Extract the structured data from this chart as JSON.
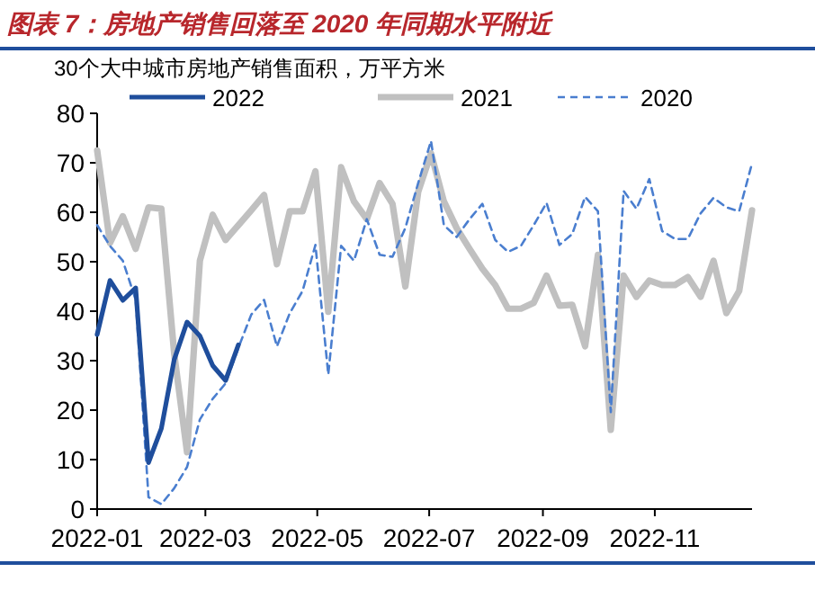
{
  "chart_data": {
    "type": "line",
    "title": "图表 7：房地产销售回落至 2020 年同期水平附近",
    "ylabel": "30个大中城市房地产销售面积，万平方米",
    "x": [
      "2022-01-01",
      "2022-01-08",
      "2022-01-15",
      "2022-01-22",
      "2022-01-29",
      "2022-02-05",
      "2022-02-12",
      "2022-02-19",
      "2022-02-26",
      "2022-03-05",
      "2022-03-12",
      "2022-03-19",
      "2022-03-26",
      "2022-04-02",
      "2022-04-09",
      "2022-04-16",
      "2022-04-23",
      "2022-04-30",
      "2022-05-07",
      "2022-05-14",
      "2022-05-21",
      "2022-05-28",
      "2022-06-04",
      "2022-06-11",
      "2022-06-18",
      "2022-06-25",
      "2022-07-02",
      "2022-07-09",
      "2022-07-16",
      "2022-07-23",
      "2022-07-30",
      "2022-08-06",
      "2022-08-13",
      "2022-08-20",
      "2022-08-27",
      "2022-09-03",
      "2022-09-10",
      "2022-09-17",
      "2022-09-24",
      "2022-10-01",
      "2022-10-08",
      "2022-10-15",
      "2022-10-22",
      "2022-10-29",
      "2022-11-05",
      "2022-11-12",
      "2022-11-19",
      "2022-11-26",
      "2022-12-03",
      "2022-12-10",
      "2022-12-17",
      "2022-12-24"
    ],
    "series": [
      {
        "name": "2022",
        "color": "#1f4e9c",
        "line_style": "solid",
        "x": [
          "2022-01-01",
          "2022-01-08",
          "2022-01-15",
          "2022-01-22",
          "2022-01-29",
          "2022-02-05",
          "2022-02-12",
          "2022-02-19",
          "2022-02-26",
          "2022-03-05",
          "2022-03-12",
          "2022-03-19"
        ],
        "values": [
          35.3,
          46.2,
          42.2,
          44.7,
          9.4,
          16.3,
          30.2,
          37.8,
          35,
          29,
          26,
          33.2
        ]
      },
      {
        "name": "2021",
        "color": "#c0c0c0",
        "line_style": "solid",
        "values": [
          72.5,
          53.8,
          59.2,
          52.6,
          61,
          60.7,
          31.4,
          11.5,
          50.2,
          59.5,
          54.4,
          57.4,
          60.4,
          63.5,
          49.5,
          60.2,
          60.2,
          68.3,
          39.9,
          69.1,
          62.2,
          58.6,
          65.9,
          61.7,
          45,
          64.1,
          71.9,
          62.2,
          56.8,
          52.6,
          48.6,
          45.3,
          40.5,
          40.5,
          41.7,
          47.2,
          41.1,
          41.3,
          32.9,
          51.4,
          16,
          47.2,
          42.9,
          46.2,
          45.3,
          45.3,
          46.9,
          42.9,
          50.2,
          39.6,
          44.1,
          60.4
        ]
      },
      {
        "name": "2020",
        "color": "#4a7ecf",
        "line_style": "dashed",
        "values": [
          57.4,
          53.2,
          50.2,
          42.3,
          2.4,
          1,
          4.2,
          8.5,
          18.1,
          22.3,
          25.4,
          32.6,
          39.3,
          42.3,
          32.9,
          39.6,
          44.1,
          53.4,
          27.2,
          53.2,
          50.2,
          58.6,
          51.4,
          51,
          56.8,
          65.9,
          74.4,
          57.4,
          55,
          58.6,
          61.7,
          54.4,
          52,
          53.2,
          57.4,
          61.9,
          53.4,
          55.6,
          63.1,
          60.2,
          19.6,
          64.3,
          60.7,
          66.7,
          56.2,
          54.6,
          54.6,
          59.8,
          62.9,
          61,
          60.2,
          69.9
        ]
      }
    ],
    "xlim": [
      "2022-01-01",
      "2022-12-24"
    ],
    "xticks": [
      {
        "value": "2022-01-01",
        "label": "2022-01"
      },
      {
        "value": "2022-03-01",
        "label": "2022-03"
      },
      {
        "value": "2022-05-01",
        "label": "2022-05"
      },
      {
        "value": "2022-07-01",
        "label": "2022-07"
      },
      {
        "value": "2022-09-01",
        "label": "2022-09"
      },
      {
        "value": "2022-11-01",
        "label": "2022-11"
      }
    ],
    "ylim": [
      0,
      80
    ],
    "yticks": [
      0,
      10,
      20,
      30,
      40,
      50,
      60,
      70,
      80
    ],
    "grid": false,
    "legend": "top",
    "marker": "none"
  }
}
